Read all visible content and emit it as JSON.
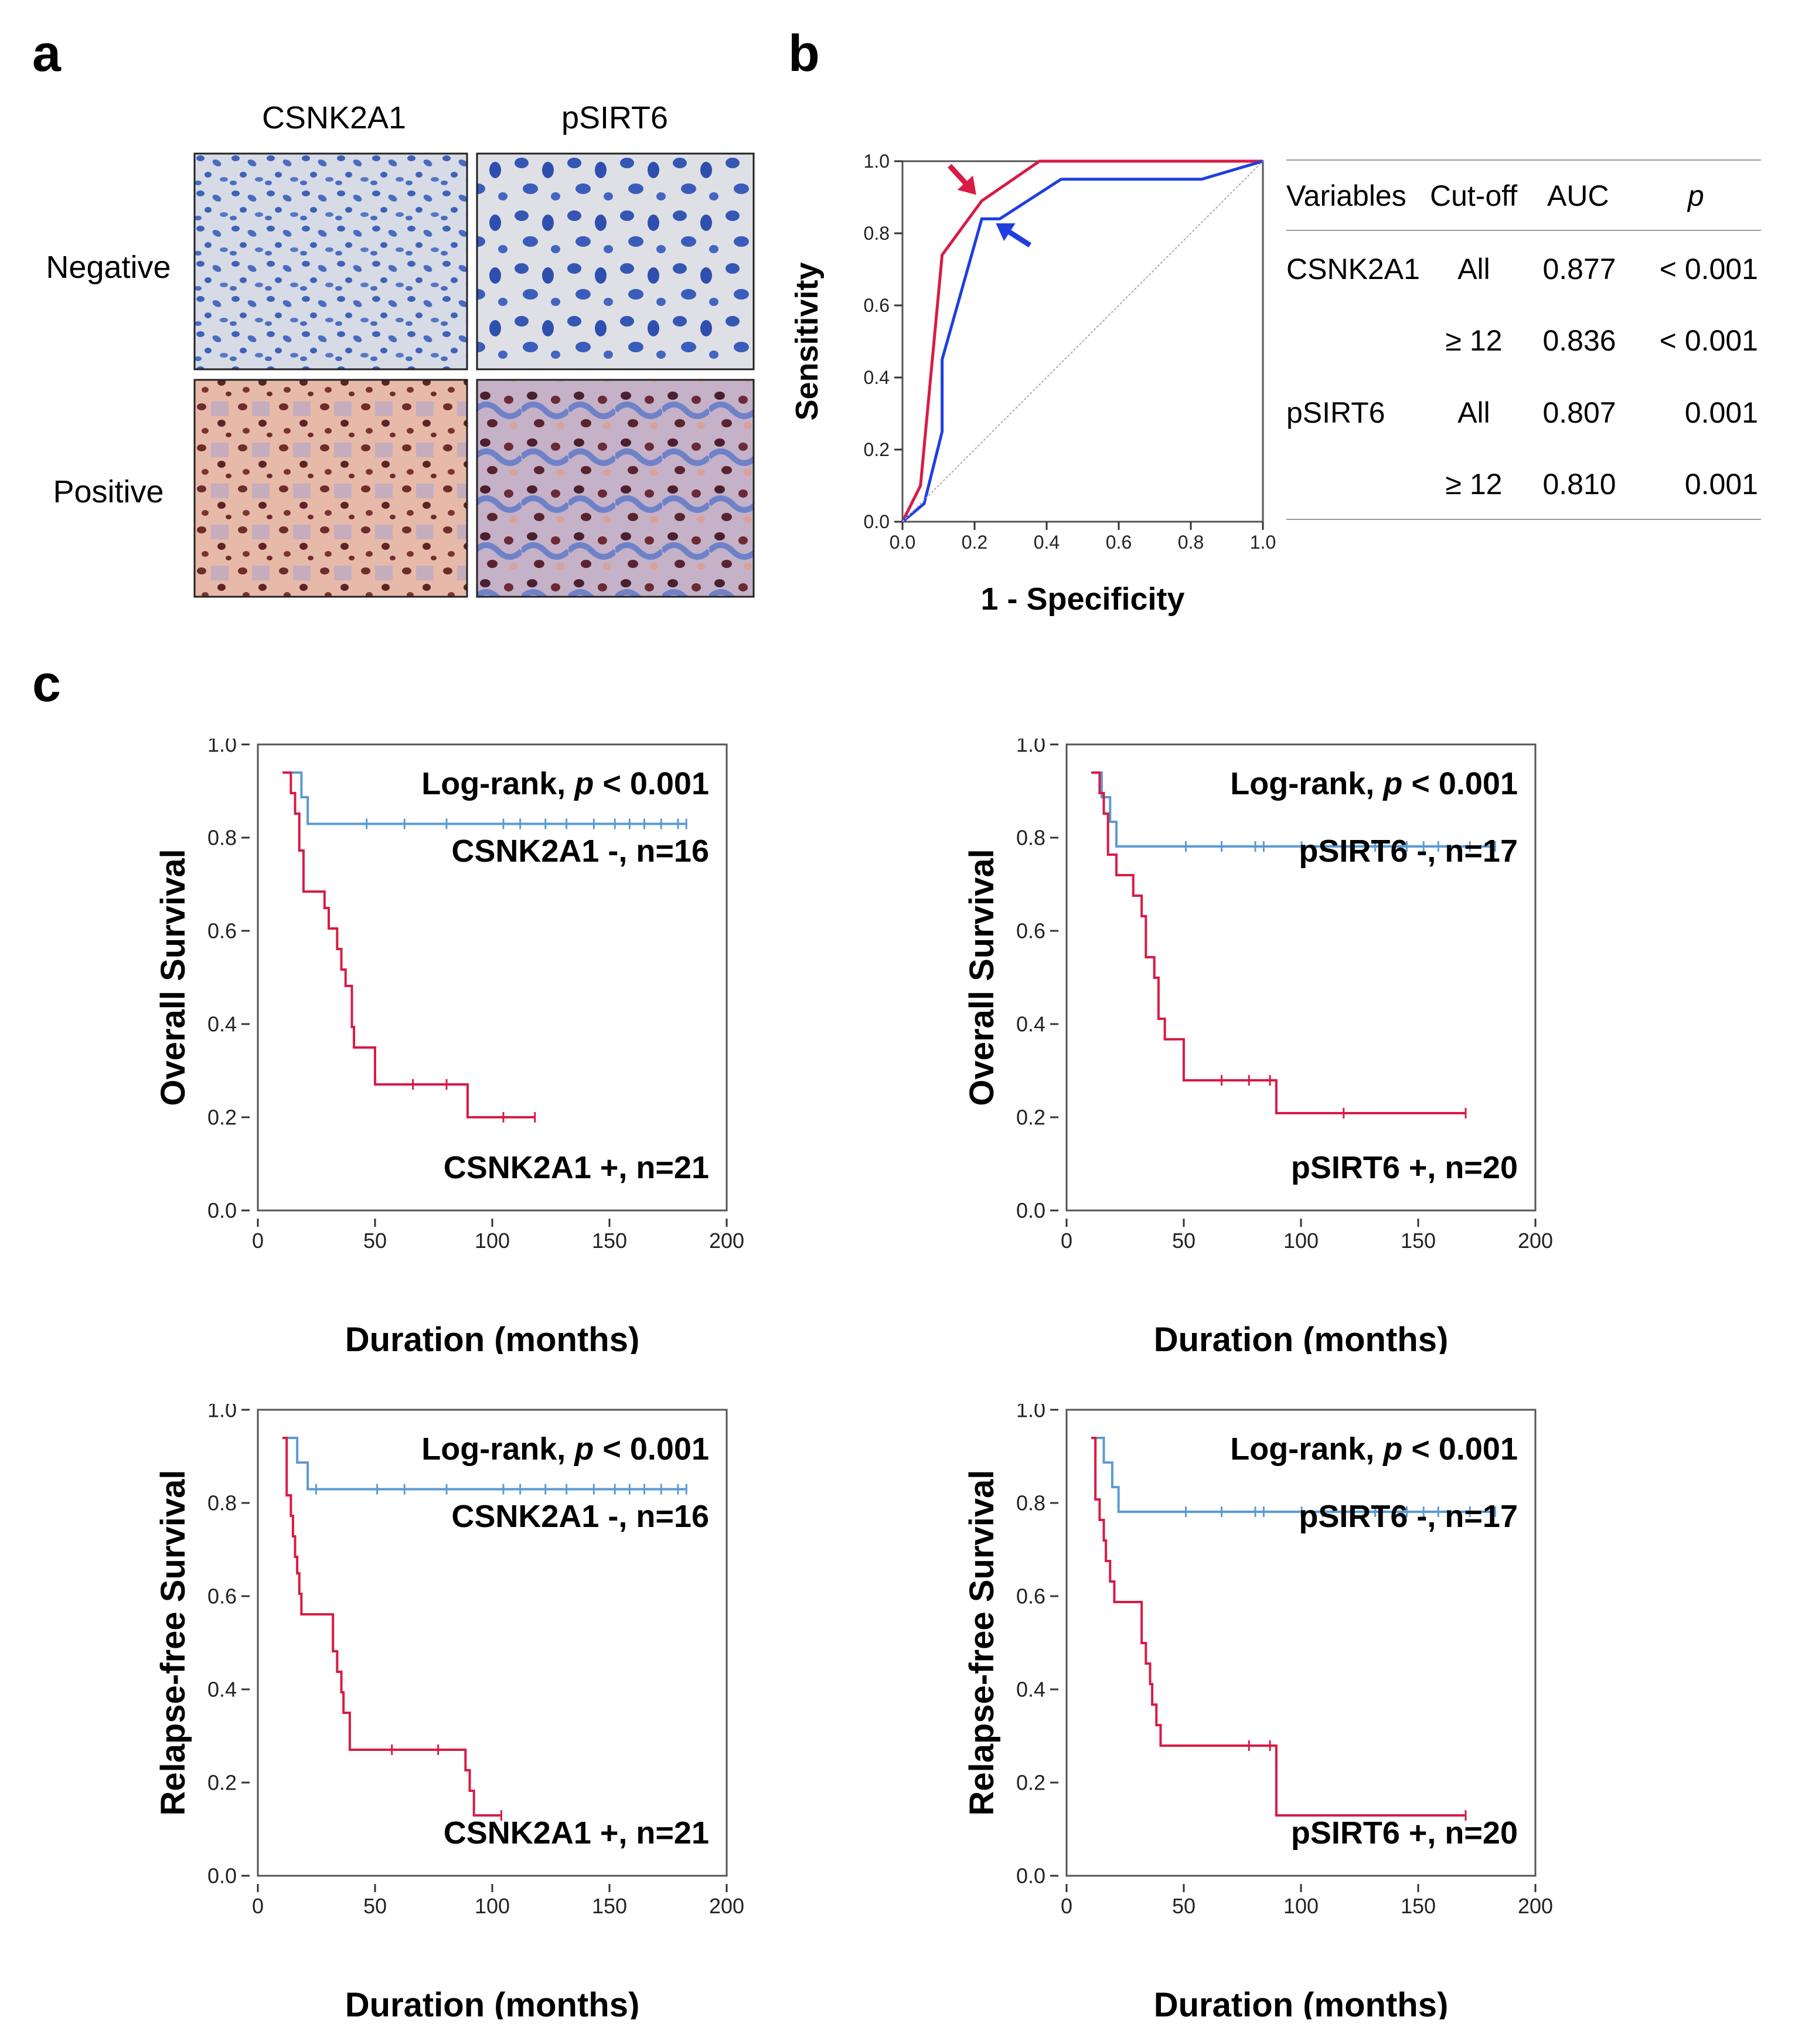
{
  "panels": {
    "a": {
      "letter": "a",
      "columns": [
        "CSNK2A1",
        "pSIRT6"
      ],
      "rows": [
        "Negative",
        "Positive"
      ]
    },
    "b": {
      "letter": "b",
      "table": {
        "headers": [
          "Variables",
          "Cut-off",
          "AUC",
          "p"
        ],
        "rows": [
          [
            "CSNK2A1",
            "All",
            "0.877",
            "< 0.001"
          ],
          [
            "",
            "≥ 12",
            "0.836",
            "< 0.001"
          ],
          [
            "pSIRT6",
            "All",
            "0.807",
            "0.001"
          ],
          [
            "",
            "≥ 12",
            "0.810",
            "0.001"
          ]
        ]
      }
    },
    "c": {
      "letter": "c"
    }
  },
  "colors": {
    "red": "#d81b45",
    "blue": "#1f3ee0",
    "lightblue": "#5b9bd5",
    "ref": "#aaaaaa",
    "stain_negative_bg": "#d9dde6",
    "stain_negative_nuclei": "#3f63b8",
    "stain_positive_bg": "#e6b8a8",
    "stain_positive_nuclei": "#6e2d2a",
    "stain_positive_blue": "#8f9ed0"
  },
  "chart_data": [
    {
      "id": "roc",
      "type": "line",
      "xlabel": "1 - Specificity",
      "ylabel": "Sensitivity",
      "xlim": [
        0,
        1
      ],
      "ylim": [
        0,
        1
      ],
      "xticks": [
        "0.0",
        "0.2",
        "0.4",
        "0.6",
        "0.8",
        "1.0"
      ],
      "yticks": [
        "0.0",
        "0.2",
        "0.4",
        "0.6",
        "0.8",
        "1.0"
      ],
      "series": [
        {
          "name": "CSNK2A1",
          "color": "red",
          "points": [
            [
              0,
              0
            ],
            [
              0.05,
              0.1
            ],
            [
              0.11,
              0.74
            ],
            [
              0.22,
              0.89
            ],
            [
              0.38,
              1.0
            ],
            [
              1.0,
              1.0
            ]
          ]
        },
        {
          "name": "pSIRT6",
          "color": "blue",
          "points": [
            [
              0,
              0
            ],
            [
              0.06,
              0.05
            ],
            [
              0.11,
              0.25
            ],
            [
              0.11,
              0.45
            ],
            [
              0.22,
              0.84
            ],
            [
              0.27,
              0.84
            ],
            [
              0.44,
              0.95
            ],
            [
              0.83,
              0.95
            ],
            [
              1.0,
              1.0
            ]
          ]
        },
        {
          "name": "reference",
          "color": "ref",
          "points": [
            [
              0,
              0
            ],
            [
              1,
              1
            ]
          ],
          "dashed": true
        }
      ],
      "arrows": [
        {
          "series": "CSNK2A1",
          "point": [
            0.22,
            0.89
          ],
          "color": "red"
        },
        {
          "series": "pSIRT6",
          "point": [
            0.24,
            0.84
          ],
          "color": "blue"
        }
      ]
    },
    {
      "id": "os-csnk2a1",
      "type": "line",
      "xlabel": "Duration (months)",
      "ylabel": "Overall Survival",
      "xlim": [
        0,
        200
      ],
      "ylim": [
        0,
        1
      ],
      "xticks": [
        "0",
        "50",
        "100",
        "150",
        "200"
      ],
      "yticks": [
        "0.0",
        "0.2",
        "0.4",
        "0.6",
        "0.8",
        "1.0"
      ],
      "annotation_prefix": "Log-rank, ",
      "annotation_p": "p",
      "annotation_suffix": " < 0.001",
      "series": [
        {
          "name": "CSNK2A1 -, n=16",
          "color": "lightblue",
          "steps": [
            [
              0,
              1.0
            ],
            [
              9,
              0.94
            ],
            [
              12,
              0.875
            ],
            [
              192,
              0.875
            ]
          ],
          "censor": [
            40,
            58,
            78,
            105,
            113,
            125,
            135,
            148,
            158,
            165,
            172,
            180,
            188,
            192
          ]
        },
        {
          "name": "CSNK2A1 +, n=21",
          "color": "red",
          "steps": [
            [
              0,
              1.0
            ],
            [
              4,
              0.95
            ],
            [
              6,
              0.9
            ],
            [
              8,
              0.81
            ],
            [
              10,
              0.71
            ],
            [
              18,
              0.71
            ],
            [
              20,
              0.67
            ],
            [
              22,
              0.62
            ],
            [
              26,
              0.57
            ],
            [
              28,
              0.52
            ],
            [
              30,
              0.48
            ],
            [
              33,
              0.38
            ],
            [
              34,
              0.33
            ],
            [
              44,
              0.24
            ],
            [
              88,
              0.16
            ],
            [
              120,
              0.16
            ]
          ],
          "censor": [
            62,
            78,
            105,
            120
          ]
        }
      ]
    },
    {
      "id": "os-psirt6",
      "type": "line",
      "xlabel": "Duration (months)",
      "ylabel": "Overall Survival",
      "xlim": [
        0,
        200
      ],
      "ylim": [
        0,
        1
      ],
      "xticks": [
        "0",
        "50",
        "100",
        "150",
        "200"
      ],
      "yticks": [
        "0.0",
        "0.2",
        "0.4",
        "0.6",
        "0.8",
        "1.0"
      ],
      "annotation_prefix": "Log-rank, ",
      "annotation_p": "p",
      "annotation_suffix": " < 0.001",
      "series": [
        {
          "name": "pSIRT6 -, n=17",
          "color": "lightblue",
          "steps": [
            [
              0,
              1.0
            ],
            [
              5,
              0.94
            ],
            [
              9,
              0.88
            ],
            [
              12,
              0.82
            ],
            [
              192,
              0.82
            ]
          ],
          "censor": [
            45,
            62,
            78,
            82,
            100,
            110,
            120,
            135,
            150,
            158,
            165,
            180,
            192
          ]
        },
        {
          "name": "pSIRT6 +, n=20",
          "color": "red",
          "steps": [
            [
              0,
              1.0
            ],
            [
              4,
              0.95
            ],
            [
              6,
              0.9
            ],
            [
              8,
              0.8
            ],
            [
              12,
              0.75
            ],
            [
              18,
              0.75
            ],
            [
              20,
              0.7
            ],
            [
              24,
              0.65
            ],
            [
              26,
              0.55
            ],
            [
              30,
              0.5
            ],
            [
              32,
              0.4
            ],
            [
              35,
              0.35
            ],
            [
              44,
              0.25
            ],
            [
              88,
              0.17
            ],
            [
              178,
              0.17
            ]
          ],
          "censor": [
            62,
            75,
            85,
            120,
            178
          ]
        }
      ]
    },
    {
      "id": "rfs-csnk2a1",
      "type": "line",
      "xlabel": "Duration (months)",
      "ylabel": "Relapse-free Survival",
      "xlim": [
        0,
        200
      ],
      "ylim": [
        0,
        1
      ],
      "xticks": [
        "0",
        "50",
        "100",
        "150",
        "200"
      ],
      "yticks": [
        "0.0",
        "0.2",
        "0.4",
        "0.6",
        "0.8",
        "1.0"
      ],
      "annotation_prefix": "Log-rank, ",
      "annotation_p": "p",
      "annotation_suffix": " < 0.001",
      "series": [
        {
          "name": "CSNK2A1 -, n=16",
          "color": "lightblue",
          "steps": [
            [
              0,
              1.0
            ],
            [
              7,
              0.94
            ],
            [
              12,
              0.875
            ],
            [
              192,
              0.875
            ]
          ],
          "censor": [
            16,
            45,
            58,
            78,
            105,
            113,
            125,
            135,
            148,
            158,
            165,
            172,
            180,
            188,
            192
          ]
        },
        {
          "name": "CSNK2A1 +, n=21",
          "color": "red",
          "steps": [
            [
              0,
              1.0
            ],
            [
              2,
              0.86
            ],
            [
              4,
              0.81
            ],
            [
              5,
              0.76
            ],
            [
              6,
              0.71
            ],
            [
              7,
              0.67
            ],
            [
              8,
              0.62
            ],
            [
              9,
              0.57
            ],
            [
              22,
              0.57
            ],
            [
              24,
              0.48
            ],
            [
              26,
              0.43
            ],
            [
              28,
              0.38
            ],
            [
              29,
              0.33
            ],
            [
              32,
              0.24
            ],
            [
              87,
              0.19
            ],
            [
              89,
              0.14
            ],
            [
              91,
              0.08
            ],
            [
              104,
              0.08
            ]
          ],
          "censor": [
            52,
            74,
            104
          ]
        }
      ]
    },
    {
      "id": "rfs-psirt6",
      "type": "line",
      "xlabel": "Duration (months)",
      "ylabel": "Relapse-free Survival",
      "xlim": [
        0,
        200
      ],
      "ylim": [
        0,
        1
      ],
      "xticks": [
        "0",
        "50",
        "100",
        "150",
        "200"
      ],
      "yticks": [
        "0.0",
        "0.2",
        "0.4",
        "0.6",
        "0.8",
        "1.0"
      ],
      "annotation_prefix": "Log-rank, ",
      "annotation_p": "p",
      "annotation_suffix": " < 0.001",
      "series": [
        {
          "name": "pSIRT6 -, n=17",
          "color": "lightblue",
          "steps": [
            [
              0,
              1.0
            ],
            [
              6,
              0.94
            ],
            [
              10,
              0.88
            ],
            [
              13,
              0.82
            ],
            [
              192,
              0.82
            ]
          ],
          "censor": [
            45,
            62,
            78,
            82,
            100,
            110,
            120,
            135,
            150,
            158,
            165,
            180,
            192
          ]
        },
        {
          "name": "pSIRT6 +, n=20",
          "color": "red",
          "steps": [
            [
              0,
              1.0
            ],
            [
              2,
              0.85
            ],
            [
              4,
              0.8
            ],
            [
              6,
              0.75
            ],
            [
              7,
              0.7
            ],
            [
              9,
              0.65
            ],
            [
              11,
              0.6
            ],
            [
              22,
              0.6
            ],
            [
              24,
              0.5
            ],
            [
              26,
              0.45
            ],
            [
              28,
              0.4
            ],
            [
              29,
              0.35
            ],
            [
              31,
              0.3
            ],
            [
              33,
              0.25
            ],
            [
              88,
              0.08
            ],
            [
              178,
              0.08
            ]
          ],
          "censor": [
            75,
            85,
            178
          ]
        }
      ]
    }
  ]
}
